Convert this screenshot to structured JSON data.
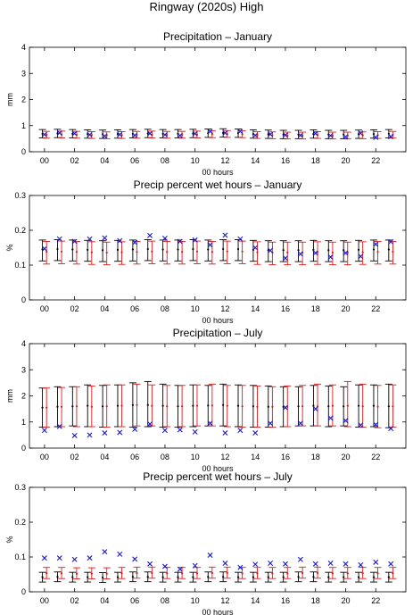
{
  "figure_title": "Ringway (2020s) High",
  "colors": {
    "black_series": "#000000",
    "red_series": "#e0191a",
    "observed": "#1a1acc",
    "axes": "#000000"
  },
  "chart_data": [
    {
      "type": "errorbar",
      "title": "Precipitation – January",
      "xlabel": "00 hours",
      "ylabel": "mm",
      "ylim": [
        0,
        4
      ],
      "yticks": [
        "0",
        "1",
        "2",
        "3",
        "4"
      ],
      "xtick_labels": [
        "00",
        "02",
        "04",
        "06",
        "08",
        "10",
        "12",
        "14",
        "16",
        "18",
        "20",
        "22"
      ],
      "hours": [
        0,
        1,
        2,
        3,
        4,
        5,
        6,
        7,
        8,
        9,
        10,
        11,
        12,
        13,
        14,
        15,
        16,
        17,
        18,
        19,
        20,
        21,
        22,
        23
      ],
      "series": [
        {
          "color": "black",
          "center": [
            0.69,
            0.7,
            0.69,
            0.68,
            0.67,
            0.68,
            0.69,
            0.7,
            0.69,
            0.69,
            0.7,
            0.71,
            0.72,
            0.71,
            0.68,
            0.67,
            0.66,
            0.66,
            0.68,
            0.66,
            0.66,
            0.67,
            0.68,
            0.69
          ],
          "low": [
            0.53,
            0.54,
            0.53,
            0.52,
            0.51,
            0.52,
            0.53,
            0.54,
            0.53,
            0.53,
            0.54,
            0.55,
            0.56,
            0.55,
            0.52,
            0.51,
            0.5,
            0.5,
            0.52,
            0.5,
            0.5,
            0.51,
            0.52,
            0.53
          ],
          "high": [
            0.85,
            0.86,
            0.85,
            0.84,
            0.83,
            0.84,
            0.85,
            0.86,
            0.85,
            0.85,
            0.86,
            0.87,
            0.88,
            0.87,
            0.84,
            0.83,
            0.82,
            0.82,
            0.84,
            0.82,
            0.82,
            0.83,
            0.84,
            0.85
          ]
        },
        {
          "color": "red",
          "center": [
            0.65,
            0.66,
            0.65,
            0.64,
            0.63,
            0.64,
            0.65,
            0.66,
            0.65,
            0.65,
            0.66,
            0.67,
            0.68,
            0.67,
            0.64,
            0.63,
            0.62,
            0.62,
            0.64,
            0.62,
            0.62,
            0.63,
            0.64,
            0.65
          ],
          "low": [
            0.52,
            0.53,
            0.52,
            0.51,
            0.5,
            0.51,
            0.52,
            0.53,
            0.52,
            0.52,
            0.53,
            0.54,
            0.55,
            0.54,
            0.51,
            0.5,
            0.49,
            0.49,
            0.51,
            0.49,
            0.49,
            0.5,
            0.51,
            0.52
          ],
          "high": [
            0.78,
            0.79,
            0.78,
            0.77,
            0.76,
            0.77,
            0.78,
            0.79,
            0.78,
            0.78,
            0.79,
            0.8,
            0.81,
            0.8,
            0.77,
            0.76,
            0.75,
            0.75,
            0.77,
            0.75,
            0.75,
            0.76,
            0.77,
            0.78
          ]
        }
      ],
      "observed": [
        0.66,
        0.72,
        0.7,
        0.65,
        0.6,
        0.66,
        0.63,
        0.7,
        0.65,
        0.62,
        0.69,
        0.78,
        0.72,
        0.78,
        0.63,
        0.67,
        0.64,
        0.63,
        0.7,
        0.62,
        0.57,
        0.71,
        0.55,
        0.58
      ]
    },
    {
      "type": "errorbar",
      "title": "Precip percent wet hours – January",
      "xlabel": "00 hours",
      "ylabel": "%",
      "ylim": [
        0,
        0.3
      ],
      "yticks": [
        "0",
        "0.1",
        "0.2",
        "0.3"
      ],
      "xtick_labels": [
        "00",
        "02",
        "04",
        "06",
        "08",
        "10",
        "12",
        "14",
        "16",
        "18",
        "20",
        "22"
      ],
      "hours": [
        0,
        1,
        2,
        3,
        4,
        5,
        6,
        7,
        8,
        9,
        10,
        11,
        12,
        13,
        14,
        15,
        16,
        17,
        18,
        19,
        20,
        21,
        22,
        23
      ],
      "series": [
        {
          "color": "black",
          "center": [
            0.145,
            0.146,
            0.145,
            0.144,
            0.143,
            0.144,
            0.145,
            0.146,
            0.145,
            0.145,
            0.146,
            0.145,
            0.146,
            0.146,
            0.144,
            0.143,
            0.143,
            0.143,
            0.144,
            0.143,
            0.143,
            0.144,
            0.145,
            0.145
          ],
          "low": [
            0.112,
            0.113,
            0.112,
            0.111,
            0.11,
            0.111,
            0.112,
            0.113,
            0.112,
            0.112,
            0.113,
            0.112,
            0.113,
            0.113,
            0.111,
            0.11,
            0.11,
            0.11,
            0.111,
            0.11,
            0.11,
            0.111,
            0.112,
            0.112
          ],
          "high": [
            0.172,
            0.173,
            0.172,
            0.171,
            0.17,
            0.171,
            0.172,
            0.173,
            0.172,
            0.172,
            0.173,
            0.172,
            0.173,
            0.173,
            0.171,
            0.17,
            0.17,
            0.17,
            0.171,
            0.17,
            0.17,
            0.171,
            0.172,
            0.172
          ]
        },
        {
          "color": "red",
          "center": [
            0.138,
            0.139,
            0.138,
            0.137,
            0.136,
            0.137,
            0.138,
            0.139,
            0.138,
            0.138,
            0.139,
            0.138,
            0.139,
            0.139,
            0.137,
            0.136,
            0.136,
            0.136,
            0.137,
            0.136,
            0.136,
            0.137,
            0.138,
            0.138
          ],
          "low": [
            0.103,
            0.104,
            0.103,
            0.102,
            0.101,
            0.102,
            0.103,
            0.104,
            0.103,
            0.103,
            0.104,
            0.103,
            0.104,
            0.104,
            0.102,
            0.101,
            0.101,
            0.101,
            0.102,
            0.101,
            0.101,
            0.102,
            0.103,
            0.103
          ],
          "high": [
            0.168,
            0.169,
            0.168,
            0.167,
            0.166,
            0.167,
            0.168,
            0.169,
            0.168,
            0.168,
            0.169,
            0.168,
            0.169,
            0.169,
            0.167,
            0.166,
            0.166,
            0.166,
            0.167,
            0.166,
            0.166,
            0.167,
            0.168,
            0.168
          ]
        }
      ],
      "observed": [
        0.147,
        0.175,
        0.168,
        0.175,
        0.178,
        0.17,
        0.165,
        0.185,
        0.177,
        0.168,
        0.172,
        0.158,
        0.186,
        0.175,
        0.15,
        0.142,
        0.12,
        0.132,
        0.135,
        0.123,
        0.135,
        0.125,
        0.16,
        0.167
      ]
    },
    {
      "type": "errorbar",
      "title": "Precipitation – July",
      "xlabel": "00 hours",
      "ylabel": "mm",
      "ylim": [
        0,
        4
      ],
      "yticks": [
        "0",
        "1",
        "2",
        "3",
        "4"
      ],
      "xtick_labels": [
        "00",
        "02",
        "04",
        "06",
        "08",
        "10",
        "12",
        "14",
        "16",
        "18",
        "20",
        "22"
      ],
      "hours": [
        0,
        1,
        2,
        3,
        4,
        5,
        6,
        7,
        8,
        9,
        10,
        11,
        12,
        13,
        14,
        15,
        16,
        17,
        18,
        19,
        20,
        21,
        22,
        23
      ],
      "series": [
        {
          "color": "black",
          "center": [
            1.55,
            1.58,
            1.6,
            1.62,
            1.6,
            1.62,
            1.65,
            1.65,
            1.62,
            1.6,
            1.62,
            1.63,
            1.65,
            1.62,
            1.6,
            1.58,
            1.58,
            1.6,
            1.62,
            1.6,
            1.6,
            1.62,
            1.62,
            1.6
          ],
          "low": [
            0.8,
            0.82,
            0.85,
            0.82,
            0.8,
            0.82,
            0.8,
            0.82,
            0.8,
            0.8,
            0.82,
            0.85,
            0.85,
            0.82,
            0.8,
            0.8,
            0.82,
            0.85,
            0.85,
            0.82,
            0.85,
            0.8,
            0.82,
            0.78
          ],
          "high": [
            2.3,
            2.35,
            2.35,
            2.42,
            2.4,
            2.42,
            2.5,
            2.55,
            2.45,
            2.4,
            2.42,
            2.4,
            2.45,
            2.42,
            2.4,
            2.38,
            2.35,
            2.35,
            2.4,
            2.38,
            2.35,
            2.42,
            2.42,
            2.45
          ]
        },
        {
          "color": "red",
          "center": [
            1.55,
            1.58,
            1.6,
            1.58,
            1.6,
            1.62,
            1.65,
            1.62,
            1.6,
            1.6,
            1.62,
            1.63,
            1.62,
            1.6,
            1.58,
            1.58,
            1.58,
            1.6,
            1.6,
            1.62,
            1.62,
            1.6,
            1.58,
            1.6
          ],
          "low": [
            0.8,
            0.82,
            0.82,
            0.82,
            0.8,
            0.82,
            0.85,
            0.85,
            0.82,
            0.82,
            0.85,
            0.85,
            0.82,
            0.8,
            0.8,
            0.8,
            0.82,
            0.85,
            0.85,
            0.85,
            0.82,
            0.8,
            0.78,
            0.8
          ],
          "high": [
            2.3,
            2.32,
            2.35,
            2.38,
            2.42,
            2.42,
            2.45,
            2.42,
            2.4,
            2.4,
            2.42,
            2.45,
            2.4,
            2.4,
            2.38,
            2.35,
            2.38,
            2.4,
            2.45,
            2.42,
            2.55,
            2.45,
            2.4,
            2.42
          ]
        }
      ],
      "observed": [
        0.68,
        0.83,
        0.48,
        0.5,
        0.58,
        0.6,
        0.72,
        0.92,
        0.68,
        0.7,
        0.62,
        0.95,
        0.58,
        0.68,
        0.58,
        0.95,
        1.55,
        0.95,
        1.5,
        1.15,
        1.05,
        0.88,
        0.9,
        0.75
      ]
    },
    {
      "type": "errorbar",
      "title": "Precip percent wet hours – July",
      "xlabel": "00 hours",
      "ylabel": "%",
      "ylim": [
        0,
        0.3
      ],
      "yticks": [
        "0",
        "0.1",
        "0.2",
        "0.3"
      ],
      "xtick_labels": [
        "00",
        "02",
        "04",
        "06",
        "08",
        "10",
        "12",
        "14",
        "16",
        "18",
        "20",
        "22"
      ],
      "hours": [
        0,
        1,
        2,
        3,
        4,
        5,
        6,
        7,
        8,
        9,
        10,
        11,
        12,
        13,
        14,
        15,
        16,
        17,
        18,
        19,
        20,
        21,
        22,
        23
      ],
      "series": [
        {
          "color": "black",
          "center": [
            0.042,
            0.043,
            0.042,
            0.042,
            0.041,
            0.042,
            0.043,
            0.043,
            0.042,
            0.042,
            0.042,
            0.043,
            0.043,
            0.042,
            0.042,
            0.042,
            0.042,
            0.043,
            0.043,
            0.042,
            0.042,
            0.042,
            0.042,
            0.042
          ],
          "low": [
            0.028,
            0.029,
            0.028,
            0.028,
            0.027,
            0.028,
            0.029,
            0.029,
            0.028,
            0.028,
            0.028,
            0.029,
            0.029,
            0.028,
            0.028,
            0.028,
            0.028,
            0.029,
            0.029,
            0.028,
            0.028,
            0.028,
            0.028,
            0.028
          ],
          "high": [
            0.056,
            0.057,
            0.056,
            0.056,
            0.055,
            0.056,
            0.057,
            0.057,
            0.056,
            0.056,
            0.056,
            0.057,
            0.057,
            0.056,
            0.056,
            0.056,
            0.056,
            0.057,
            0.057,
            0.056,
            0.056,
            0.056,
            0.056,
            0.056
          ]
        },
        {
          "color": "red",
          "center": [
            0.053,
            0.053,
            0.052,
            0.052,
            0.052,
            0.053,
            0.054,
            0.054,
            0.053,
            0.053,
            0.053,
            0.054,
            0.054,
            0.053,
            0.053,
            0.053,
            0.053,
            0.054,
            0.054,
            0.053,
            0.053,
            0.053,
            0.053,
            0.053
          ],
          "low": [
            0.038,
            0.038,
            0.037,
            0.037,
            0.037,
            0.038,
            0.039,
            0.039,
            0.038,
            0.038,
            0.038,
            0.039,
            0.039,
            0.038,
            0.038,
            0.038,
            0.038,
            0.039,
            0.039,
            0.038,
            0.038,
            0.038,
            0.038,
            0.038
          ],
          "high": [
            0.07,
            0.07,
            0.069,
            0.069,
            0.069,
            0.07,
            0.071,
            0.071,
            0.07,
            0.07,
            0.07,
            0.071,
            0.071,
            0.07,
            0.07,
            0.07,
            0.07,
            0.071,
            0.071,
            0.07,
            0.07,
            0.07,
            0.07,
            0.07
          ]
        }
      ],
      "observed": [
        0.097,
        0.097,
        0.093,
        0.097,
        0.115,
        0.108,
        0.094,
        0.08,
        0.073,
        0.065,
        0.075,
        0.105,
        0.082,
        0.07,
        0.079,
        0.082,
        0.08,
        0.093,
        0.08,
        0.082,
        0.08,
        0.077,
        0.085,
        0.08
      ]
    }
  ]
}
